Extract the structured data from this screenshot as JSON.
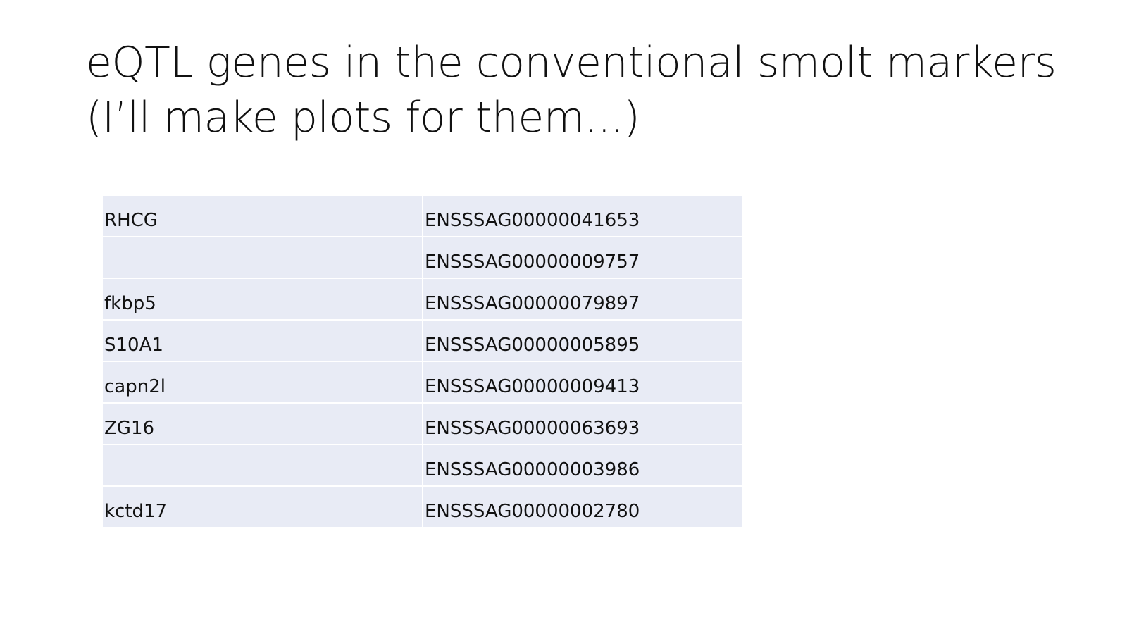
{
  "slide": {
    "title_lines": [
      "eQTL genes in the conventional smolt markers",
      "(I’ll make plots for them...)"
    ]
  },
  "table": {
    "rows": [
      {
        "gene": "RHCG",
        "ensembl_id": "ENSSSAG00000041653"
      },
      {
        "gene": "",
        "ensembl_id": "ENSSSAG00000009757"
      },
      {
        "gene": "fkbp5",
        "ensembl_id": "ENSSSAG00000079897"
      },
      {
        "gene": "S10A1",
        "ensembl_id": "ENSSSAG00000005895"
      },
      {
        "gene": "capn2l",
        "ensembl_id": "ENSSSAG00000009413"
      },
      {
        "gene": "ZG16",
        "ensembl_id": "ENSSSAG00000063693"
      },
      {
        "gene": "",
        "ensembl_id": "ENSSSAG00000003986"
      },
      {
        "gene": "kctd17",
        "ensembl_id": "ENSSSAG00000002780"
      }
    ]
  },
  "colors": {
    "cell_background": "#e8ebf5",
    "text": "#111111",
    "page_background": "#ffffff"
  }
}
